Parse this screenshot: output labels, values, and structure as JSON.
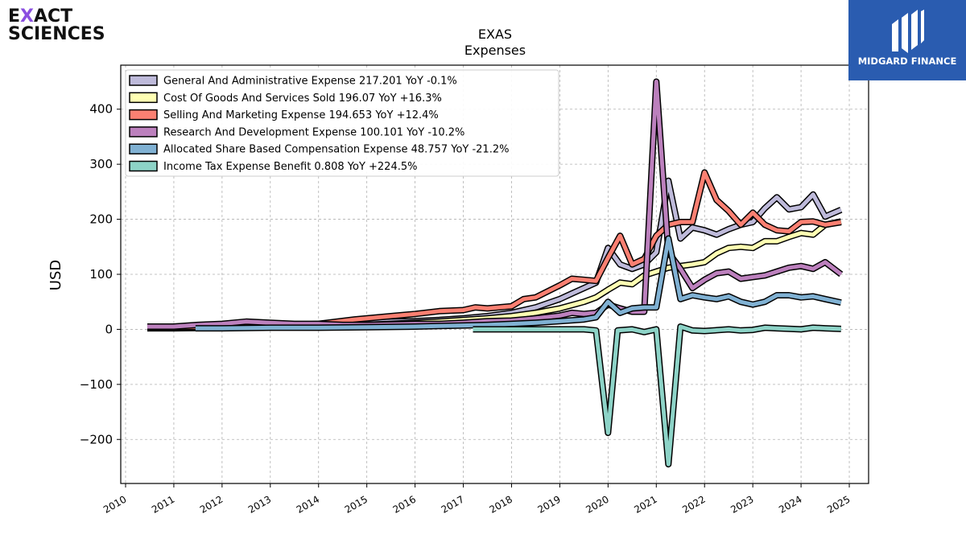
{
  "brand": {
    "company_line1_pre": "E",
    "company_line1_x": "X",
    "company_line1_post": "ACT",
    "company_line2": "SCIENCES",
    "publisher": "MIDGARD FINANCE"
  },
  "chart_data": {
    "type": "line",
    "title": "EXAS",
    "subtitle": "Expenses",
    "ylabel": "USD",
    "xlabel": "",
    "ylim": [
      -280,
      480
    ],
    "xlim": [
      2009.9,
      2025.4
    ],
    "yticks": [
      -200,
      -100,
      0,
      100,
      200,
      300,
      400
    ],
    "ytick_labels": [
      "−200",
      "−100",
      "0",
      "100",
      "200",
      "300",
      "400"
    ],
    "xticks": [
      2010,
      2011,
      2012,
      2013,
      2014,
      2015,
      2016,
      2017,
      2018,
      2019,
      2020,
      2021,
      2022,
      2023,
      2024,
      2025
    ],
    "xtick_labels": [
      "2010",
      "2011",
      "2012",
      "2013",
      "2014",
      "2015",
      "2016",
      "2017",
      "2018",
      "2019",
      "2020",
      "2021",
      "2022",
      "2023",
      "2024",
      "2025"
    ],
    "grid": true,
    "legend_position": "top-left",
    "series": [
      {
        "name": "General And Administrative Expense",
        "legend": "General And Administrative Expense  217.201 YoY -0.1%",
        "color": "#bebada",
        "points": [
          [
            2010.45,
            5
          ],
          [
            2011,
            5
          ],
          [
            2011.5,
            6
          ],
          [
            2012,
            7
          ],
          [
            2012.5,
            8
          ],
          [
            2013,
            8
          ],
          [
            2013.5,
            8
          ],
          [
            2014,
            9
          ],
          [
            2014.5,
            10
          ],
          [
            2015,
            12
          ],
          [
            2015.5,
            14
          ],
          [
            2016,
            15
          ],
          [
            2016.5,
            17
          ],
          [
            2017,
            20
          ],
          [
            2017.5,
            24
          ],
          [
            2018,
            30
          ],
          [
            2018.5,
            40
          ],
          [
            2019,
            55
          ],
          [
            2019.25,
            65
          ],
          [
            2019.5,
            75
          ],
          [
            2019.75,
            85
          ],
          [
            2020,
            148
          ],
          [
            2020.25,
            118
          ],
          [
            2020.5,
            110
          ],
          [
            2020.75,
            118
          ],
          [
            2021,
            140
          ],
          [
            2021.25,
            270
          ],
          [
            2021.5,
            165
          ],
          [
            2021.75,
            185
          ],
          [
            2022,
            180
          ],
          [
            2022.25,
            172
          ],
          [
            2022.5,
            182
          ],
          [
            2022.75,
            190
          ],
          [
            2023,
            195
          ],
          [
            2023.25,
            220
          ],
          [
            2023.5,
            240
          ],
          [
            2023.75,
            218
          ],
          [
            2024,
            222
          ],
          [
            2024.25,
            245
          ],
          [
            2024.5,
            205
          ],
          [
            2024.83,
            217.201
          ]
        ]
      },
      {
        "name": "Cost Of Goods And Services Sold",
        "legend": "Cost Of Goods And Services Sold  196.07 YoY +16.3%",
        "color": "#ffffb3",
        "points": [
          [
            2010.45,
            2
          ],
          [
            2011,
            2
          ],
          [
            2012,
            3
          ],
          [
            2013,
            4
          ],
          [
            2014,
            6
          ],
          [
            2015,
            8
          ],
          [
            2015.5,
            10
          ],
          [
            2016,
            12
          ],
          [
            2016.5,
            14
          ],
          [
            2017,
            17
          ],
          [
            2017.5,
            20
          ],
          [
            2018,
            24
          ],
          [
            2018.5,
            30
          ],
          [
            2019,
            38
          ],
          [
            2019.5,
            50
          ],
          [
            2019.75,
            58
          ],
          [
            2020,
            72
          ],
          [
            2020.25,
            85
          ],
          [
            2020.5,
            82
          ],
          [
            2020.75,
            98
          ],
          [
            2021,
            105
          ],
          [
            2021.25,
            112
          ],
          [
            2021.5,
            115
          ],
          [
            2021.75,
            118
          ],
          [
            2022,
            122
          ],
          [
            2022.25,
            138
          ],
          [
            2022.5,
            148
          ],
          [
            2022.75,
            150
          ],
          [
            2023,
            148
          ],
          [
            2023.25,
            160
          ],
          [
            2023.5,
            160
          ],
          [
            2023.75,
            168
          ],
          [
            2024,
            175
          ],
          [
            2024.25,
            172
          ],
          [
            2024.5,
            190
          ],
          [
            2024.83,
            196.07
          ]
        ]
      },
      {
        "name": "Selling And Marketing Expense",
        "legend": "Selling And Marketing Expense  194.653 YoY +12.4%",
        "color": "#fb8072",
        "points": [
          [
            2010.45,
            3
          ],
          [
            2011,
            4
          ],
          [
            2012,
            5
          ],
          [
            2013,
            7
          ],
          [
            2014,
            10
          ],
          [
            2014.75,
            18
          ],
          [
            2015.25,
            22
          ],
          [
            2015.5,
            24
          ],
          [
            2016,
            28
          ],
          [
            2016.5,
            33
          ],
          [
            2017,
            35
          ],
          [
            2017.25,
            40
          ],
          [
            2017.5,
            38
          ],
          [
            2018,
            42
          ],
          [
            2018.25,
            55
          ],
          [
            2018.5,
            58
          ],
          [
            2019,
            80
          ],
          [
            2019.25,
            92
          ],
          [
            2019.5,
            90
          ],
          [
            2019.75,
            88
          ],
          [
            2020,
            130
          ],
          [
            2020.25,
            170
          ],
          [
            2020.5,
            118
          ],
          [
            2020.75,
            128
          ],
          [
            2021,
            170
          ],
          [
            2021.25,
            190
          ],
          [
            2021.5,
            195
          ],
          [
            2021.75,
            195
          ],
          [
            2022,
            285
          ],
          [
            2022.25,
            235
          ],
          [
            2022.5,
            215
          ],
          [
            2022.75,
            190
          ],
          [
            2023,
            212
          ],
          [
            2023.25,
            190
          ],
          [
            2023.5,
            180
          ],
          [
            2023.75,
            178
          ],
          [
            2024,
            195
          ],
          [
            2024.25,
            196
          ],
          [
            2024.5,
            190
          ],
          [
            2024.83,
            194.653
          ]
        ]
      },
      {
        "name": "Research And Development Expense",
        "legend": "Research And Development Expense  100.101 YoY -10.2%",
        "color": "#bc80bd",
        "points": [
          [
            2010.45,
            5
          ],
          [
            2011,
            5
          ],
          [
            2011.5,
            8
          ],
          [
            2012,
            10
          ],
          [
            2012.5,
            14
          ],
          [
            2013,
            12
          ],
          [
            2013.5,
            10
          ],
          [
            2014,
            10
          ],
          [
            2014.5,
            8
          ],
          [
            2015,
            8
          ],
          [
            2015.5,
            9
          ],
          [
            2016,
            10
          ],
          [
            2016.5,
            10
          ],
          [
            2017,
            12
          ],
          [
            2017.5,
            15
          ],
          [
            2018,
            16
          ],
          [
            2018.5,
            20
          ],
          [
            2019,
            25
          ],
          [
            2019.25,
            30
          ],
          [
            2019.5,
            28
          ],
          [
            2019.75,
            30
          ],
          [
            2020,
            45
          ],
          [
            2020.25,
            38
          ],
          [
            2020.5,
            32
          ],
          [
            2020.75,
            32
          ],
          [
            2021,
            450
          ],
          [
            2021.25,
            140
          ],
          [
            2021.5,
            110
          ],
          [
            2021.75,
            75
          ],
          [
            2022,
            90
          ],
          [
            2022.25,
            102
          ],
          [
            2022.5,
            105
          ],
          [
            2022.75,
            92
          ],
          [
            2023,
            95
          ],
          [
            2023.25,
            98
          ],
          [
            2023.5,
            105
          ],
          [
            2023.75,
            112
          ],
          [
            2024,
            115
          ],
          [
            2024.25,
            110
          ],
          [
            2024.5,
            122
          ],
          [
            2024.83,
            100.101
          ]
        ]
      },
      {
        "name": "Allocated Share Based Compensation Expense",
        "legend": "Allocated Share Based Compensation Expense  48.757 YoY -21.2%",
        "color": "#80b1d3",
        "points": [
          [
            2011.45,
            2
          ],
          [
            2012,
            2
          ],
          [
            2013,
            3
          ],
          [
            2014,
            3
          ],
          [
            2015,
            4
          ],
          [
            2016,
            5
          ],
          [
            2016.5,
            6
          ],
          [
            2017,
            7
          ],
          [
            2017.5,
            8
          ],
          [
            2018,
            10
          ],
          [
            2018.5,
            12
          ],
          [
            2019,
            15
          ],
          [
            2019.5,
            18
          ],
          [
            2019.75,
            22
          ],
          [
            2020,
            50
          ],
          [
            2020.25,
            30
          ],
          [
            2020.5,
            38
          ],
          [
            2020.75,
            40
          ],
          [
            2021,
            40
          ],
          [
            2021.25,
            165
          ],
          [
            2021.5,
            55
          ],
          [
            2021.75,
            62
          ],
          [
            2022,
            58
          ],
          [
            2022.25,
            55
          ],
          [
            2022.5,
            60
          ],
          [
            2022.75,
            50
          ],
          [
            2023,
            45
          ],
          [
            2023.25,
            50
          ],
          [
            2023.5,
            62
          ],
          [
            2023.75,
            62
          ],
          [
            2024,
            58
          ],
          [
            2024.25,
            60
          ],
          [
            2024.5,
            55
          ],
          [
            2024.83,
            48.757
          ]
        ]
      },
      {
        "name": "Income Tax Expense Benefit",
        "legend": "Income Tax Expense Benefit  0.808 YoY +224.5%",
        "color": "#8dd3c7",
        "points": [
          [
            2017.2,
            0
          ],
          [
            2018,
            0
          ],
          [
            2019,
            0
          ],
          [
            2019.5,
            0
          ],
          [
            2019.75,
            -2
          ],
          [
            2020,
            -188
          ],
          [
            2020.2,
            -2
          ],
          [
            2020.5,
            0
          ],
          [
            2020.75,
            -5
          ],
          [
            2021,
            0
          ],
          [
            2021.25,
            -245
          ],
          [
            2021.5,
            5
          ],
          [
            2021.75,
            -2
          ],
          [
            2022,
            -3
          ],
          [
            2022.5,
            0
          ],
          [
            2022.75,
            -2
          ],
          [
            2023,
            -1
          ],
          [
            2023.25,
            3
          ],
          [
            2023.5,
            2
          ],
          [
            2023.75,
            1
          ],
          [
            2024,
            0
          ],
          [
            2024.25,
            3
          ],
          [
            2024.5,
            2
          ],
          [
            2024.83,
            0.808
          ]
        ]
      }
    ]
  }
}
